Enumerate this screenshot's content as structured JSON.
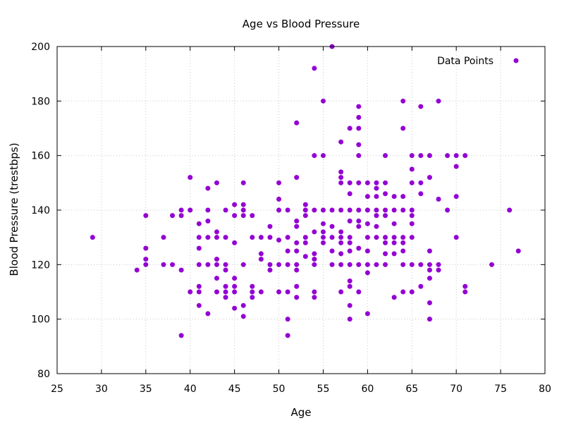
{
  "chart_data": {
    "type": "scatter",
    "title": "Age vs Blood Pressure",
    "xlabel": "Age",
    "ylabel": "Blood Pressure (trestbps)",
    "xlim": [
      25,
      80
    ],
    "ylim": [
      80,
      200
    ],
    "xticks": [
      25,
      30,
      35,
      40,
      45,
      50,
      55,
      60,
      65,
      70,
      75,
      80
    ],
    "yticks": [
      80,
      100,
      120,
      140,
      160,
      180,
      200
    ],
    "grid": true,
    "legend_position": "top-right",
    "series": [
      {
        "name": "Data Points",
        "color": "#9400d3",
        "points": [
          [
            29,
            130
          ],
          [
            34,
            118
          ],
          [
            35,
            138
          ],
          [
            35,
            126
          ],
          [
            35,
            122
          ],
          [
            35,
            120
          ],
          [
            37,
            130
          ],
          [
            37,
            120
          ],
          [
            38,
            138
          ],
          [
            38,
            120
          ],
          [
            39,
            140
          ],
          [
            39,
            138
          ],
          [
            39,
            118
          ],
          [
            39,
            94
          ],
          [
            40,
            152
          ],
          [
            40,
            140
          ],
          [
            40,
            110
          ],
          [
            41,
            135
          ],
          [
            41,
            130
          ],
          [
            41,
            126
          ],
          [
            41,
            120
          ],
          [
            41,
            112
          ],
          [
            41,
            110
          ],
          [
            41,
            105
          ],
          [
            42,
            148
          ],
          [
            42,
            140
          ],
          [
            42,
            136
          ],
          [
            42,
            130
          ],
          [
            42,
            120
          ],
          [
            42,
            102
          ],
          [
            43,
            150
          ],
          [
            43,
            132
          ],
          [
            43,
            130
          ],
          [
            43,
            122
          ],
          [
            43,
            120
          ],
          [
            43,
            115
          ],
          [
            43,
            110
          ],
          [
            44,
            140
          ],
          [
            44,
            130
          ],
          [
            44,
            120
          ],
          [
            44,
            118
          ],
          [
            44,
            112
          ],
          [
            44,
            110
          ],
          [
            44,
            108
          ],
          [
            45,
            142
          ],
          [
            45,
            138
          ],
          [
            45,
            128
          ],
          [
            45,
            115
          ],
          [
            45,
            112
          ],
          [
            45,
            110
          ],
          [
            45,
            104
          ],
          [
            46,
            150
          ],
          [
            46,
            142
          ],
          [
            46,
            140
          ],
          [
            46,
            138
          ],
          [
            46,
            120
          ],
          [
            46,
            105
          ],
          [
            46,
            101
          ],
          [
            47,
            138
          ],
          [
            47,
            130
          ],
          [
            47,
            112
          ],
          [
            47,
            110
          ],
          [
            47,
            108
          ],
          [
            48,
            130
          ],
          [
            48,
            124
          ],
          [
            48,
            122
          ],
          [
            48,
            110
          ],
          [
            49,
            134
          ],
          [
            49,
            130
          ],
          [
            49,
            120
          ],
          [
            49,
            118
          ],
          [
            50,
            150
          ],
          [
            50,
            144
          ],
          [
            50,
            140
          ],
          [
            50,
            129
          ],
          [
            50,
            120
          ],
          [
            50,
            110
          ],
          [
            51,
            140
          ],
          [
            51,
            130
          ],
          [
            51,
            125
          ],
          [
            51,
            120
          ],
          [
            51,
            110
          ],
          [
            51,
            100
          ],
          [
            51,
            94
          ],
          [
            52,
            172
          ],
          [
            52,
            152
          ],
          [
            52,
            136
          ],
          [
            52,
            134
          ],
          [
            52,
            128
          ],
          [
            52,
            125
          ],
          [
            52,
            120
          ],
          [
            52,
            118
          ],
          [
            52,
            112
          ],
          [
            52,
            108
          ],
          [
            53,
            142
          ],
          [
            53,
            140
          ],
          [
            53,
            138
          ],
          [
            53,
            130
          ],
          [
            53,
            128
          ],
          [
            53,
            123
          ],
          [
            54,
            192
          ],
          [
            54,
            160
          ],
          [
            54,
            140
          ],
          [
            54,
            132
          ],
          [
            54,
            124
          ],
          [
            54,
            122
          ],
          [
            54,
            120
          ],
          [
            54,
            110
          ],
          [
            54,
            108
          ],
          [
            55,
            180
          ],
          [
            55,
            160
          ],
          [
            55,
            140
          ],
          [
            55,
            135
          ],
          [
            55,
            132
          ],
          [
            55,
            130
          ],
          [
            55,
            128
          ],
          [
            56,
            200
          ],
          [
            56,
            140
          ],
          [
            56,
            134
          ],
          [
            56,
            130
          ],
          [
            56,
            125
          ],
          [
            56,
            120
          ],
          [
            57,
            165
          ],
          [
            57,
            154
          ],
          [
            57,
            152
          ],
          [
            57,
            150
          ],
          [
            57,
            140
          ],
          [
            57,
            132
          ],
          [
            57,
            130
          ],
          [
            57,
            128
          ],
          [
            57,
            124
          ],
          [
            57,
            120
          ],
          [
            57,
            110
          ],
          [
            58,
            170
          ],
          [
            58,
            150
          ],
          [
            58,
            146
          ],
          [
            58,
            140
          ],
          [
            58,
            136
          ],
          [
            58,
            130
          ],
          [
            58,
            128
          ],
          [
            58,
            125
          ],
          [
            58,
            120
          ],
          [
            58,
            114
          ],
          [
            58,
            112
          ],
          [
            58,
            105
          ],
          [
            58,
            100
          ],
          [
            59,
            178
          ],
          [
            59,
            174
          ],
          [
            59,
            170
          ],
          [
            59,
            164
          ],
          [
            59,
            160
          ],
          [
            59,
            150
          ],
          [
            59,
            140
          ],
          [
            59,
            136
          ],
          [
            59,
            134
          ],
          [
            59,
            126
          ],
          [
            59,
            120
          ],
          [
            59,
            110
          ],
          [
            60,
            150
          ],
          [
            60,
            145
          ],
          [
            60,
            140
          ],
          [
            60,
            135
          ],
          [
            60,
            130
          ],
          [
            60,
            125
          ],
          [
            60,
            120
          ],
          [
            60,
            117
          ],
          [
            60,
            102
          ],
          [
            61,
            150
          ],
          [
            61,
            148
          ],
          [
            61,
            145
          ],
          [
            61,
            140
          ],
          [
            61,
            138
          ],
          [
            61,
            134
          ],
          [
            61,
            130
          ],
          [
            61,
            120
          ],
          [
            62,
            160
          ],
          [
            62,
            150
          ],
          [
            62,
            146
          ],
          [
            62,
            140
          ],
          [
            62,
            138
          ],
          [
            62,
            130
          ],
          [
            62,
            128
          ],
          [
            62,
            124
          ],
          [
            62,
            120
          ],
          [
            63,
            145
          ],
          [
            63,
            140
          ],
          [
            63,
            135
          ],
          [
            63,
            130
          ],
          [
            63,
            128
          ],
          [
            63,
            124
          ],
          [
            63,
            108
          ],
          [
            64,
            180
          ],
          [
            64,
            170
          ],
          [
            64,
            145
          ],
          [
            64,
            140
          ],
          [
            64,
            130
          ],
          [
            64,
            128
          ],
          [
            64,
            125
          ],
          [
            64,
            120
          ],
          [
            64,
            110
          ],
          [
            65,
            160
          ],
          [
            65,
            155
          ],
          [
            65,
            150
          ],
          [
            65,
            140
          ],
          [
            65,
            138
          ],
          [
            65,
            135
          ],
          [
            65,
            130
          ],
          [
            65,
            120
          ],
          [
            65,
            110
          ],
          [
            66,
            178
          ],
          [
            66,
            160
          ],
          [
            66,
            150
          ],
          [
            66,
            146
          ],
          [
            66,
            120
          ],
          [
            66,
            112
          ],
          [
            67,
            160
          ],
          [
            67,
            152
          ],
          [
            67,
            125
          ],
          [
            67,
            120
          ],
          [
            67,
            118
          ],
          [
            67,
            115
          ],
          [
            67,
            106
          ],
          [
            67,
            100
          ],
          [
            68,
            180
          ],
          [
            68,
            144
          ],
          [
            68,
            120
          ],
          [
            68,
            118
          ],
          [
            69,
            160
          ],
          [
            69,
            140
          ],
          [
            70,
            160
          ],
          [
            70,
            156
          ],
          [
            70,
            145
          ],
          [
            70,
            130
          ],
          [
            71,
            160
          ],
          [
            71,
            112
          ],
          [
            71,
            110
          ],
          [
            74,
            120
          ],
          [
            76,
            140
          ],
          [
            77,
            125
          ]
        ]
      }
    ]
  }
}
